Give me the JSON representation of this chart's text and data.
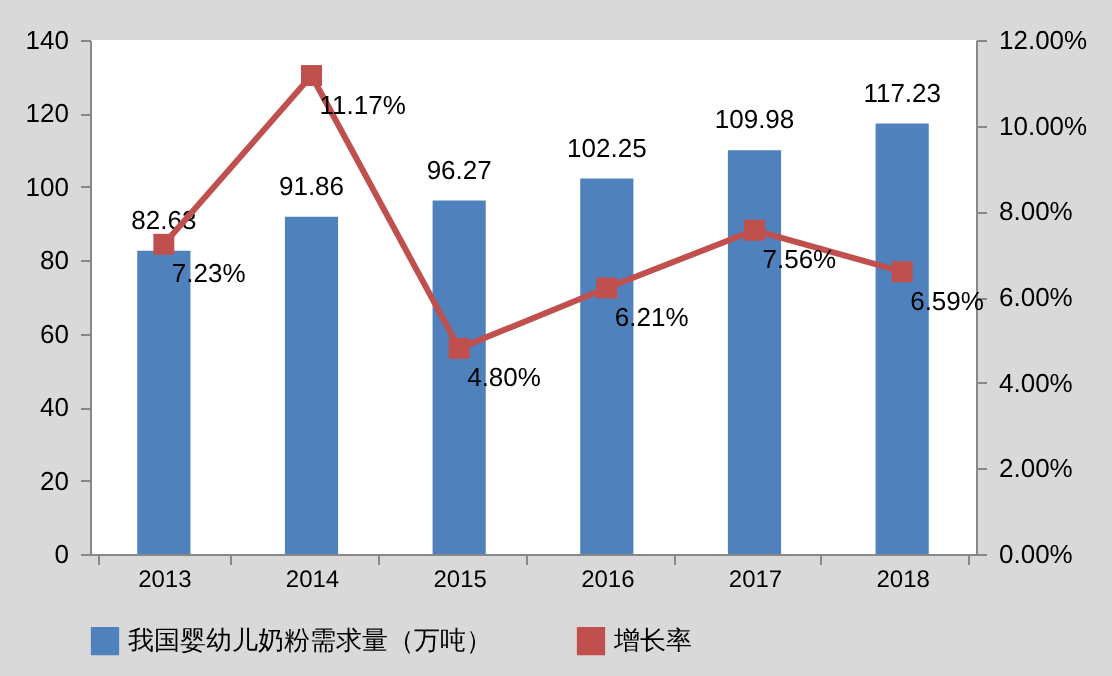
{
  "chart_data": {
    "type": "bar",
    "categories": [
      "2013",
      "2014",
      "2015",
      "2016",
      "2017",
      "2018"
    ],
    "series": [
      {
        "name": "我国婴幼儿奶粉需求量（万吨）",
        "color": "#4f81bd",
        "values": [
          82.63,
          91.86,
          96.27,
          102.25,
          109.98,
          117.23
        ],
        "value_labels": [
          "82.63",
          "91.86",
          "96.27",
          "102.25",
          "109.98",
          "117.23"
        ]
      },
      {
        "name": "增长率",
        "type": "line",
        "axis": "y2",
        "color": "#c0504d",
        "values": [
          7.23,
          11.17,
          4.8,
          6.21,
          7.56,
          6.59
        ],
        "value_labels": [
          "7.23%",
          "11.17%",
          "4.80%",
          "6.21%",
          "7.56%",
          "6.59%"
        ]
      }
    ],
    "ylim": [
      0,
      140
    ],
    "yticks": [
      0,
      20,
      40,
      60,
      80,
      100,
      120,
      140
    ],
    "y2lim": [
      0,
      12
    ],
    "y2ticks": [
      {
        "value": 0,
        "label": "0.00%"
      },
      {
        "value": 2,
        "label": "2.00%"
      },
      {
        "value": 4,
        "label": "4.00%"
      },
      {
        "value": 6,
        "label": "6.00%"
      },
      {
        "value": 8,
        "label": "8.00%"
      },
      {
        "value": 10,
        "label": "10.00%"
      },
      {
        "value": 12,
        "label": "12.00%"
      }
    ],
    "legend": "bottom",
    "marker": "square"
  }
}
